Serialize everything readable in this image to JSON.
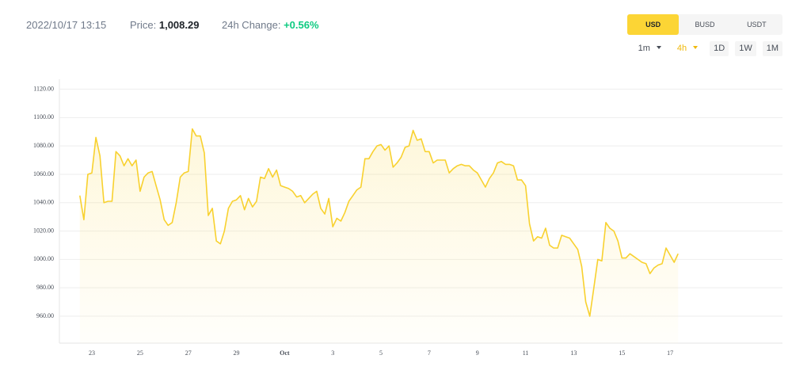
{
  "header": {
    "datetime": "2022/10/17 13:15",
    "price_label": "Price:",
    "price": "1,008.29",
    "change_label": "24h Change:",
    "change": "+0.56%"
  },
  "currencies": [
    {
      "label": "USD",
      "selected": true
    },
    {
      "label": "BUSD",
      "selected": false
    },
    {
      "label": "USDT",
      "selected": false
    }
  ],
  "intervals": [
    {
      "label": "1m",
      "dropdown": true,
      "selected": false
    },
    {
      "label": "4h",
      "dropdown": true,
      "selected": true
    },
    {
      "label": "1D",
      "dropdown": false,
      "selected": false
    },
    {
      "label": "1W",
      "dropdown": false,
      "selected": false
    },
    {
      "label": "1M",
      "dropdown": false,
      "selected": false
    }
  ],
  "chart_data": {
    "type": "line",
    "color": "#f8d12f",
    "grid": true,
    "categories": [
      null,
      null,
      null,
      "23",
      null,
      null,
      null,
      null,
      null,
      null,
      null,
      null,
      null,
      null,
      null,
      "25",
      null,
      null,
      null,
      null,
      null,
      null,
      null,
      null,
      null,
      null,
      null,
      "27",
      null,
      null,
      null,
      null,
      null,
      null,
      null,
      null,
      null,
      null,
      null,
      "29",
      null,
      null,
      null,
      null,
      null,
      null,
      null,
      null,
      null,
      null,
      null,
      "Oct",
      null,
      null,
      null,
      null,
      null,
      null,
      null,
      null,
      null,
      null,
      null,
      "3",
      null,
      null,
      null,
      null,
      null,
      null,
      null,
      null,
      null,
      null,
      null,
      "5",
      null,
      null,
      null,
      null,
      null,
      null,
      null,
      null,
      null,
      null,
      null,
      "7",
      null,
      null,
      null,
      null,
      null,
      null,
      null,
      null,
      null,
      null,
      null,
      "9",
      null,
      null,
      null,
      null,
      null,
      null,
      null,
      null,
      null,
      null,
      null,
      "11",
      null,
      null,
      null,
      null,
      null,
      null,
      null,
      null,
      null,
      null,
      null,
      "13",
      null,
      null,
      null,
      null,
      null,
      null,
      null,
      null,
      null,
      null,
      null,
      "15",
      null,
      null,
      null,
      null,
      null,
      null,
      null,
      null,
      null,
      null,
      null,
      "17",
      null,
      null
    ],
    "values": [
      1045,
      1028,
      1060,
      1061,
      1086,
      1073,
      1040,
      1041,
      1041,
      1076,
      1073,
      1066,
      1071,
      1066,
      1070,
      1048,
      1058,
      1061,
      1062,
      1052,
      1042,
      1028,
      1024,
      1026,
      1040,
      1058,
      1061,
      1062,
      1092,
      1087,
      1087,
      1075,
      1031,
      1036,
      1013,
      1011,
      1020,
      1036,
      1041,
      1042,
      1045,
      1035,
      1043,
      1037,
      1041,
      1058,
      1057,
      1064,
      1058,
      1063,
      1052,
      1051,
      1050,
      1048,
      1044,
      1045,
      1040,
      1043,
      1046,
      1048,
      1036,
      1032,
      1043,
      1023,
      1029,
      1027,
      1033,
      1041,
      1045,
      1049,
      1051,
      1071,
      1071,
      1076,
      1080,
      1081,
      1077,
      1080,
      1065,
      1068,
      1072,
      1079,
      1080,
      1091,
      1084,
      1085,
      1076,
      1076,
      1068,
      1070,
      1070,
      1070,
      1061,
      1064,
      1066,
      1067,
      1066,
      1066,
      1063,
      1061,
      1056,
      1051,
      1057,
      1061,
      1068,
      1069,
      1067,
      1067,
      1066,
      1056,
      1056,
      1052,
      1025,
      1013,
      1016,
      1015,
      1022,
      1010,
      1008,
      1008,
      1017,
      1016,
      1015,
      1011,
      1007,
      995,
      970,
      960,
      980,
      1000,
      999,
      1026,
      1022,
      1020,
      1013,
      1001,
      1001,
      1004,
      1002,
      1000,
      998,
      997,
      990,
      994,
      996,
      997,
      1008,
      1003,
      998,
      1004
    ],
    "ylim": [
      941,
      1127
    ],
    "yticks": [
      {
        "value": 960,
        "label": "960.00"
      },
      {
        "value": 980,
        "label": "980.00"
      },
      {
        "value": 1000,
        "label": "1000.00"
      },
      {
        "value": 1020,
        "label": "1020.00"
      },
      {
        "value": 1040,
        "label": "1040.00"
      },
      {
        "value": 1060,
        "label": "1060.00"
      },
      {
        "value": 1080,
        "label": "1080.00"
      },
      {
        "value": 1100,
        "label": "1100.00"
      },
      {
        "value": 1120,
        "label": "1120.00"
      }
    ]
  }
}
